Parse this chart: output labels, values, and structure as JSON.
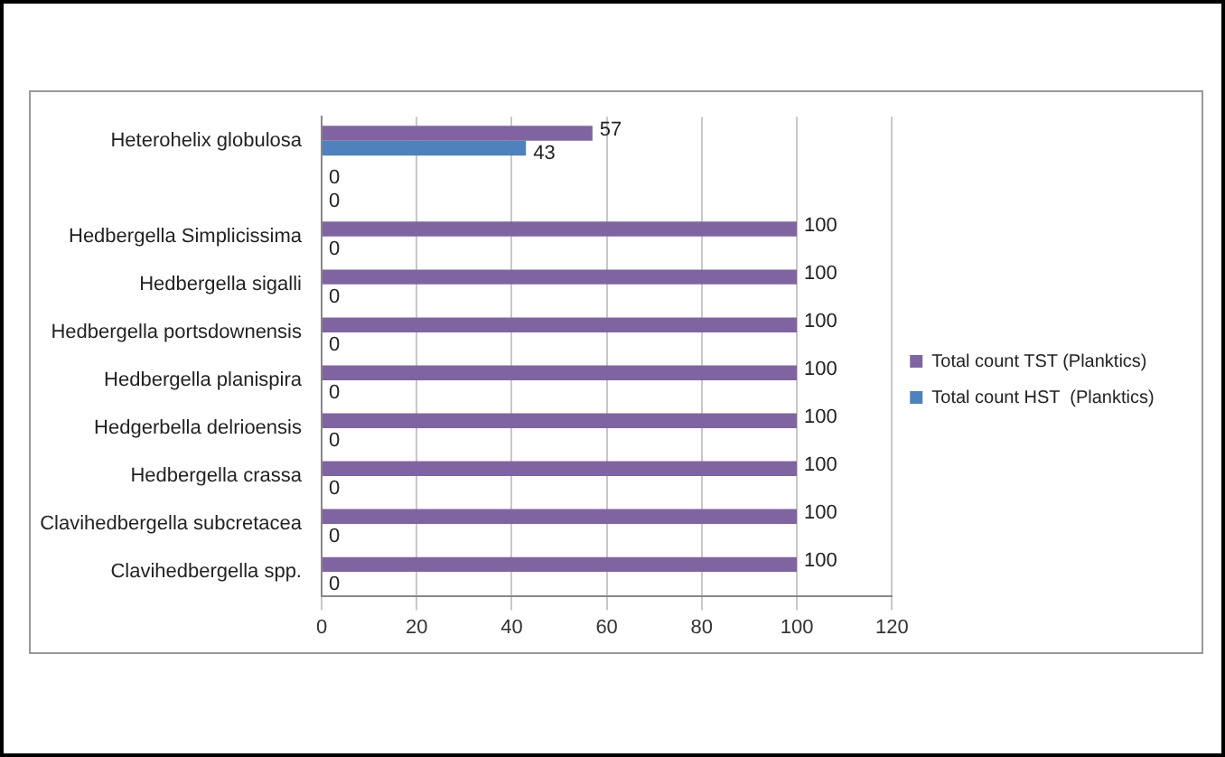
{
  "chart_data": {
    "type": "bar",
    "orientation": "horizontal",
    "categories": [
      "Heterohelix globulosa",
      null,
      "Hedbergella Simplicissima",
      "Hedbergella sigalli",
      "Hedbergella portsdownensis",
      "Hedbergella planispira",
      "Hedgerbella delrioensis",
      "Hedbergella crassa",
      "Clavihedbergella subcretacea",
      "Clavihedbergella spp."
    ],
    "series": [
      {
        "name": "Total count TST (Planktics)",
        "color": "#8064a2",
        "values": [
          57,
          0,
          100,
          100,
          100,
          100,
          100,
          100,
          100,
          100
        ]
      },
      {
        "name": "Total count HST  (Planktics)",
        "color": "#4f81bd",
        "values": [
          43,
          0,
          0,
          0,
          0,
          0,
          0,
          0,
          0,
          0
        ]
      }
    ],
    "xlim": [
      0,
      120
    ],
    "xticks": [
      0,
      20,
      40,
      60,
      80,
      100,
      120
    ],
    "grid": "x",
    "legend": "right",
    "data_labels": true
  }
}
